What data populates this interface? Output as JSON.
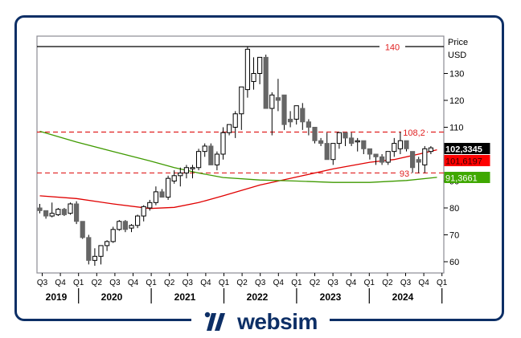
{
  "brand": {
    "name": "websim",
    "color": "#0d2f66"
  },
  "chart_data": {
    "type": "candlestick",
    "title": "",
    "ylabel": "Price USD",
    "axis_title_line1": "Price",
    "axis_title_line2": "USD",
    "ylim": [
      56,
      144
    ],
    "yticks": [
      60,
      70,
      80,
      90,
      110,
      120,
      130
    ],
    "x_quarter_labels": [
      "Q3",
      "Q4",
      "Q1",
      "Q2",
      "Q3",
      "Q4",
      "Q1",
      "Q2",
      "Q3",
      "Q4",
      "Q1",
      "Q2",
      "Q3",
      "Q4",
      "Q1",
      "Q2",
      "Q3",
      "Q4",
      "Q1",
      "Q2",
      "Q3",
      "Q4",
      "Q1"
    ],
    "x_year_labels": [
      "2019",
      "2020",
      "2021",
      "2022",
      "2023",
      "2024"
    ],
    "interval": "monthly",
    "candles": [
      {
        "o": 80,
        "h": 81.5,
        "l": 78,
        "c": 79
      },
      {
        "o": 79,
        "h": 79,
        "l": 76,
        "c": 77
      },
      {
        "o": 77,
        "h": 82,
        "l": 76.5,
        "c": 78
      },
      {
        "o": 77.5,
        "h": 80,
        "l": 77,
        "c": 79.5
      },
      {
        "o": 79.5,
        "h": 80,
        "l": 77,
        "c": 77.5
      },
      {
        "o": 78,
        "h": 82,
        "l": 77.5,
        "c": 81.5
      },
      {
        "o": 81.5,
        "h": 82.5,
        "l": 74,
        "c": 75
      },
      {
        "o": 75,
        "h": 74,
        "l": 68.5,
        "c": 69
      },
      {
        "o": 69,
        "h": 70,
        "l": 59,
        "c": 60.5
      },
      {
        "o": 60.5,
        "h": 65,
        "l": 58.5,
        "c": 62
      },
      {
        "o": 62,
        "h": 66,
        "l": 59,
        "c": 66
      },
      {
        "o": 66,
        "h": 68,
        "l": 64,
        "c": 67.5
      },
      {
        "o": 67.5,
        "h": 73,
        "l": 67,
        "c": 72
      },
      {
        "o": 72,
        "h": 75.5,
        "l": 71.5,
        "c": 75
      },
      {
        "o": 75,
        "h": 75.5,
        "l": 71,
        "c": 72
      },
      {
        "o": 72.5,
        "h": 74,
        "l": 71,
        "c": 73.5
      },
      {
        "o": 73.5,
        "h": 77.5,
        "l": 72.5,
        "c": 77
      },
      {
        "o": 77,
        "h": 81,
        "l": 75,
        "c": 80.5
      },
      {
        "o": 80,
        "h": 83,
        "l": 79,
        "c": 82
      },
      {
        "o": 82,
        "h": 88,
        "l": 81,
        "c": 86
      },
      {
        "o": 86,
        "h": 87,
        "l": 84,
        "c": 84
      },
      {
        "o": 84,
        "h": 92,
        "l": 83,
        "c": 91
      },
      {
        "o": 90,
        "h": 94,
        "l": 89,
        "c": 92
      },
      {
        "o": 92,
        "h": 95,
        "l": 88,
        "c": 93
      },
      {
        "o": 93,
        "h": 96,
        "l": 91,
        "c": 95
      },
      {
        "o": 95,
        "h": 96,
        "l": 91,
        "c": 95
      },
      {
        "o": 95,
        "h": 102,
        "l": 94,
        "c": 101
      },
      {
        "o": 101,
        "h": 104,
        "l": 99,
        "c": 103
      },
      {
        "o": 103,
        "h": 104,
        "l": 96,
        "c": 96
      },
      {
        "o": 96,
        "h": 101,
        "l": 94,
        "c": 100
      },
      {
        "o": 100,
        "h": 110,
        "l": 98,
        "c": 108
      },
      {
        "o": 108,
        "h": 111,
        "l": 107,
        "c": 111
      },
      {
        "o": 110,
        "h": 116,
        "l": 106,
        "c": 115
      },
      {
        "o": 115,
        "h": 121,
        "l": 109,
        "c": 125
      },
      {
        "o": 124,
        "h": 140,
        "l": 121,
        "c": 139
      },
      {
        "o": 127,
        "h": 136,
        "l": 124,
        "c": 130
      },
      {
        "o": 130,
        "h": 134,
        "l": 126,
        "c": 136
      },
      {
        "o": 136,
        "h": 137,
        "l": 119,
        "c": 117
      },
      {
        "o": 117,
        "h": 123,
        "l": 107,
        "c": 122
      },
      {
        "o": 121,
        "h": 128,
        "l": 116,
        "c": 120
      },
      {
        "o": 122,
        "h": 122,
        "l": 109,
        "c": 111
      },
      {
        "o": 113,
        "h": 116,
        "l": 110,
        "c": 112
      },
      {
        "o": 113,
        "h": 117,
        "l": 111,
        "c": 118
      },
      {
        "o": 117,
        "h": 119,
        "l": 109,
        "c": 112
      },
      {
        "o": 112,
        "h": 113,
        "l": 107,
        "c": 110
      },
      {
        "o": 110,
        "h": 110,
        "l": 104,
        "c": 105
      },
      {
        "o": 105,
        "h": 106,
        "l": 103,
        "c": 104
      },
      {
        "o": 104,
        "h": 108,
        "l": 99,
        "c": 98
      },
      {
        "o": 98,
        "h": 104,
        "l": 96,
        "c": 104
      },
      {
        "o": 104,
        "h": 108,
        "l": 102,
        "c": 108
      },
      {
        "o": 108,
        "h": 108,
        "l": 103,
        "c": 106
      },
      {
        "o": 106,
        "h": 108,
        "l": 103,
        "c": 104
      },
      {
        "o": 105,
        "h": 106,
        "l": 101,
        "c": 105
      },
      {
        "o": 105,
        "h": 105,
        "l": 100,
        "c": 102
      },
      {
        "o": 102,
        "h": 102,
        "l": 98,
        "c": 100
      },
      {
        "o": 100,
        "h": 100,
        "l": 96,
        "c": 99
      },
      {
        "o": 99,
        "h": 100,
        "l": 96,
        "c": 97
      },
      {
        "o": 97,
        "h": 101,
        "l": 96,
        "c": 101
      },
      {
        "o": 101,
        "h": 106,
        "l": 99,
        "c": 104
      },
      {
        "o": 102,
        "h": 108.2,
        "l": 100,
        "c": 105
      },
      {
        "o": 105,
        "h": 105,
        "l": 101,
        "c": 102
      },
      {
        "o": 101,
        "h": 101,
        "l": 93,
        "c": 95
      },
      {
        "o": 98,
        "h": 99,
        "l": 93,
        "c": 97
      },
      {
        "o": 96,
        "h": 103,
        "l": 93,
        "c": 102
      },
      {
        "o": 101,
        "h": 103,
        "l": 100,
        "c": 102.33
      }
    ],
    "moving_averages": [
      {
        "name": "MA short",
        "color": "#e00000",
        "last_value": "101,6197",
        "points": [
          [
            0,
            84.5
          ],
          [
            6,
            83.5
          ],
          [
            12,
            81.5
          ],
          [
            18,
            79.8
          ],
          [
            22,
            80.2
          ],
          [
            26,
            82
          ],
          [
            30,
            84.5
          ],
          [
            36,
            88.5
          ],
          [
            42,
            91.5
          ],
          [
            48,
            94.5
          ],
          [
            54,
            97
          ],
          [
            58,
            98
          ],
          [
            62,
            100
          ],
          [
            65,
            101.62
          ]
        ]
      },
      {
        "name": "MA long",
        "color": "#3f9a00",
        "last_value": "91,3661",
        "points": [
          [
            0,
            108.5
          ],
          [
            6,
            104.5
          ],
          [
            12,
            101
          ],
          [
            18,
            97.5
          ],
          [
            22,
            95
          ],
          [
            26,
            93
          ],
          [
            30,
            91.3
          ],
          [
            36,
            90.4
          ],
          [
            42,
            90
          ],
          [
            48,
            89.5
          ],
          [
            54,
            89.5
          ],
          [
            60,
            90.2
          ],
          [
            65,
            91.37
          ]
        ]
      }
    ],
    "horizontal_lines": [
      {
        "value": 140,
        "label": "140",
        "style": "solid",
        "color": "#000000"
      },
      {
        "value": 108.2,
        "label": "108,2",
        "style": "dashed",
        "color": "#e02020"
      },
      {
        "value": 93,
        "label": "93",
        "style": "dashed",
        "color": "#e02020"
      }
    ],
    "price_tags": [
      {
        "label": "102,3345",
        "value": 102.3345,
        "bg": "#000000",
        "fg": "#ffffff"
      },
      {
        "label": "101,6197",
        "value": 101.6197,
        "bg": "#ff0000",
        "fg": "#3a0000"
      },
      {
        "label": "91,3661",
        "value": 91.3661,
        "bg": "#3fa800",
        "fg": "#ffffff"
      }
    ],
    "grid": false,
    "legend": "none"
  }
}
